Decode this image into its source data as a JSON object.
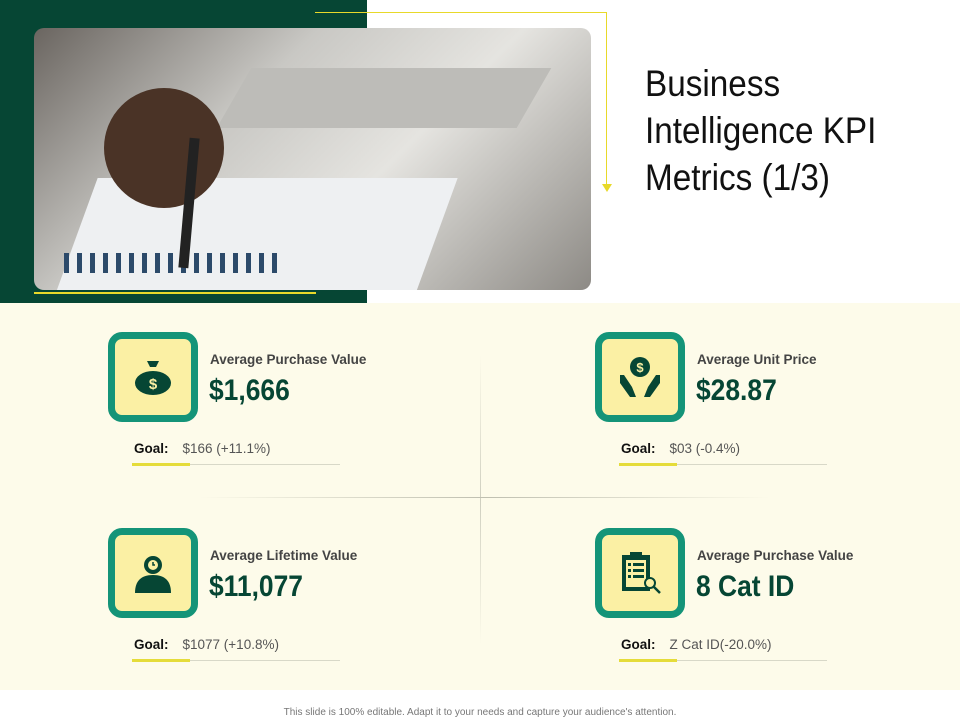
{
  "title": "Business Intelligence KPI Metrics (1/3)",
  "colors": {
    "dark_green": "#064634",
    "teal": "#149478",
    "yellow": "#e8d92a",
    "icon_bg": "#fbf0a4",
    "band_bg": "#fdfbea"
  },
  "kpis": [
    {
      "icon": "money-bag-icon",
      "label": "Average Purchase Value",
      "value": "$1,666",
      "goal_label": "Goal:",
      "goal_value": "$166 (+11.1%)"
    },
    {
      "icon": "hands-dollar-icon",
      "label": "Average Unit Price",
      "value": "$28.87",
      "goal_label": "Goal:",
      "goal_value": "$03 (-0.4%)"
    },
    {
      "icon": "person-clock-icon",
      "label": "Average Lifetime Value",
      "value": "$11,077",
      "goal_label": "Goal:",
      "goal_value": "$1077 (+10.8%)"
    },
    {
      "icon": "clipboard-search-icon",
      "label": "Average Purchase Value",
      "value": "8 Cat ID",
      "goal_label": "Goal:",
      "goal_value": "Z Cat ID(-20.0%)"
    }
  ],
  "footer": "This slide is 100% editable. Adapt it to your needs and capture your audience's attention."
}
